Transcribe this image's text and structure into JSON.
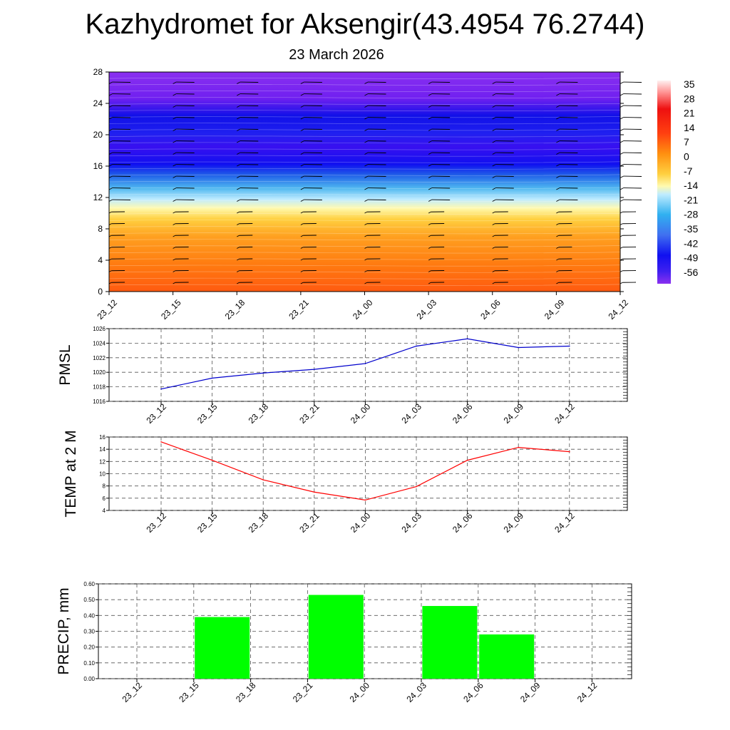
{
  "title": "Kazhydromet for Aksengir(43.4954 76.2744)",
  "subtitle": "23 March 2026",
  "chart_data": [
    {
      "id": "cross-section",
      "type": "heatmap",
      "y_ticks": [
        "0",
        "4",
        "8",
        "12",
        "16",
        "20",
        "24",
        "28"
      ],
      "ylim": [
        0,
        28
      ],
      "x_ticks": [
        "23_12",
        "23_15",
        "23_18",
        "23_21",
        "24_00",
        "24_03",
        "24_06",
        "24_09",
        "24_12"
      ],
      "colorbar": {
        "labels": [
          "35",
          "28",
          "21",
          "14",
          "7",
          "0",
          "-7",
          "-14",
          "-21",
          "-28",
          "-35",
          "-42",
          "-49",
          "-56"
        ],
        "values": [
          35,
          28,
          21,
          14,
          7,
          0,
          -7,
          -14,
          -21,
          -28,
          -35,
          -42,
          -49,
          -56
        ]
      },
      "wind_barbs": true
    },
    {
      "id": "pmsl",
      "type": "line",
      "ylabel": "PMSL",
      "ylim": [
        1016,
        1026
      ],
      "y_ticks": [
        "1016",
        "1018",
        "1020",
        "1022",
        "1024",
        "1026"
      ],
      "categories": [
        "23_12",
        "23_15",
        "23_18",
        "23_21",
        "24_00",
        "24_03",
        "24_06",
        "24_09",
        "24_12"
      ],
      "values": [
        1017.7,
        1019.2,
        1019.9,
        1020.4,
        1021.2,
        1023.6,
        1024.6,
        1023.4,
        1023.6
      ],
      "line_color": "#0000cc",
      "grid": true
    },
    {
      "id": "temp2m",
      "type": "line",
      "ylabel": "TEMP at 2 M",
      "ylim": [
        4,
        16
      ],
      "y_ticks": [
        "4",
        "6",
        "8",
        "10",
        "12",
        "14",
        "16"
      ],
      "categories": [
        "23_12",
        "23_15",
        "23_18",
        "23_21",
        "24_00",
        "24_03",
        "24_06",
        "24_09",
        "24_12"
      ],
      "values": [
        15.2,
        12.2,
        9.0,
        7.0,
        5.7,
        7.9,
        12.2,
        14.3,
        13.6
      ],
      "line_color": "#ff0000",
      "grid": true
    },
    {
      "id": "precip",
      "type": "bar",
      "ylabel": "PRECIP, mm",
      "ylim": [
        0,
        0.6
      ],
      "y_ticks": [
        "0.00",
        "0.10",
        "0.20",
        "0.30",
        "0.40",
        "0.50",
        "0.60"
      ],
      "categories": [
        "23_12",
        "23_15",
        "23_18",
        "23_21",
        "24_00",
        "24_03",
        "24_06",
        "24_09",
        "24_12"
      ],
      "values": [
        0,
        0.39,
        0,
        0.53,
        0,
        0.46,
        0.28,
        0,
        0
      ],
      "bar_color": "#00ff00",
      "grid": true
    }
  ]
}
